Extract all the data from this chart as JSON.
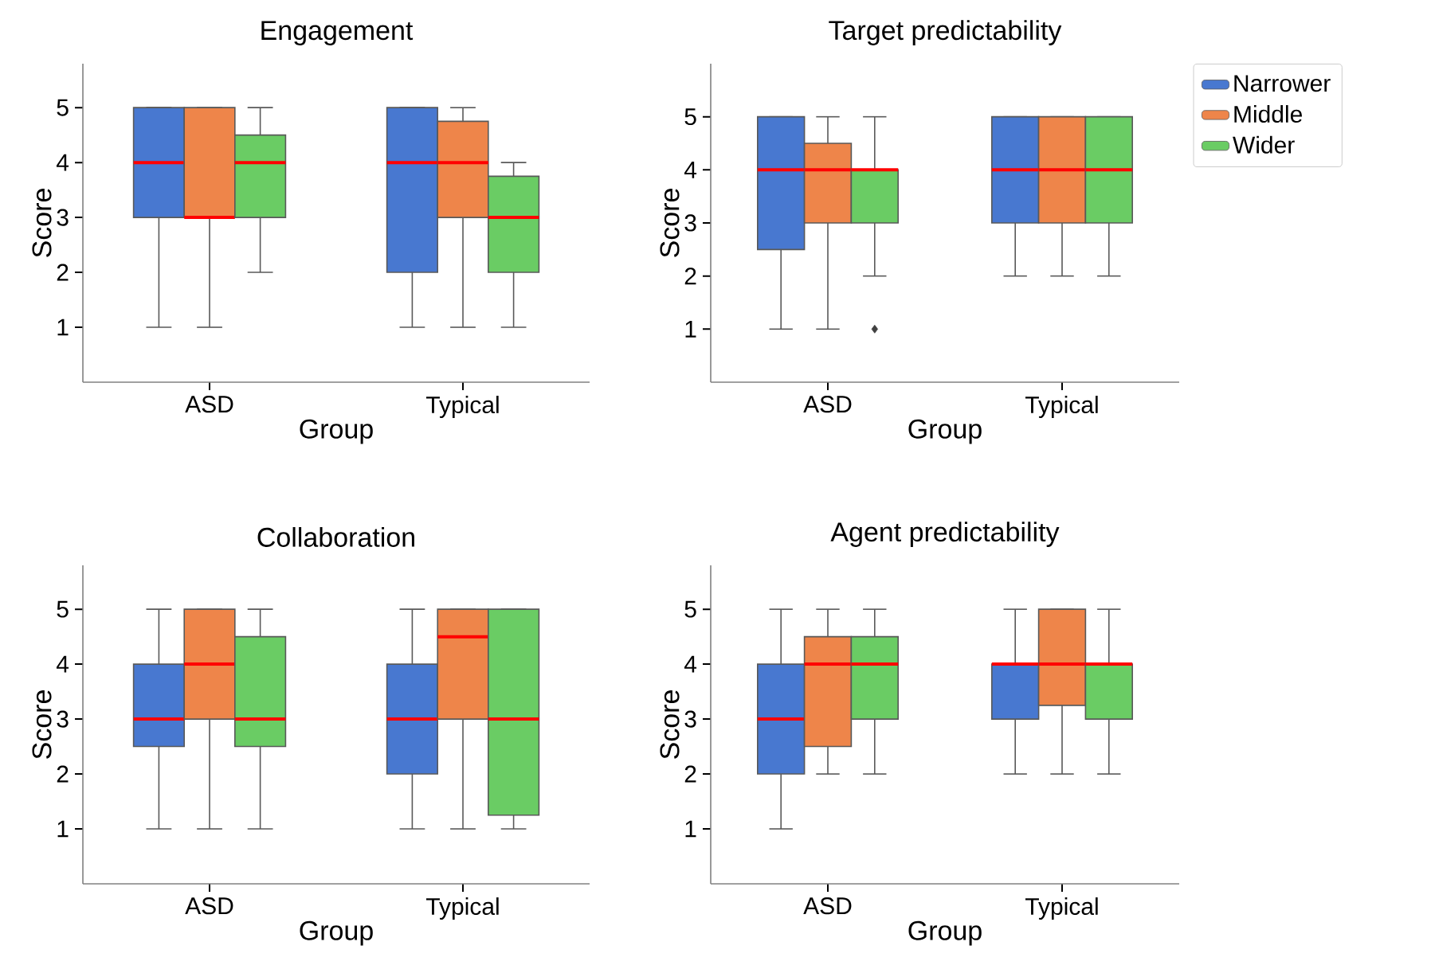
{
  "chart_data": [
    {
      "type": "box",
      "title": "Engagement",
      "xlabel": "Group",
      "ylabel": "Score",
      "categories": [
        "ASD",
        "Typical"
      ],
      "ylim": [
        0,
        5.8
      ],
      "yticks": [
        1,
        2,
        3,
        4,
        5
      ],
      "grid": false,
      "legend": false,
      "series": [
        {
          "color": "#4878d0",
          "boxes": [
            {
              "low": 1,
              "q1": 3,
              "median": 4,
              "q3": 5,
              "high": 5
            },
            {
              "low": 1,
              "q1": 2,
              "median": 4,
              "q3": 5,
              "high": 5
            }
          ]
        },
        {
          "color": "#ee854a",
          "boxes": [
            {
              "low": 1,
              "q1": 3,
              "median": 3,
              "q3": 5,
              "high": 5
            },
            {
              "low": 1,
              "q1": 3,
              "median": 4,
              "q3": 4.75,
              "high": 5
            }
          ]
        },
        {
          "color": "#6acc64",
          "boxes": [
            {
              "low": 2,
              "q1": 3,
              "median": 4,
              "q3": 4.5,
              "high": 5
            },
            {
              "low": 1,
              "q1": 2,
              "median": 3,
              "q3": 3.75,
              "high": 4
            }
          ]
        }
      ]
    },
    {
      "type": "box",
      "title": "Target predictability",
      "xlabel": "Group",
      "ylabel": "Score",
      "categories": [
        "ASD",
        "Typical"
      ],
      "ylim": [
        0,
        6
      ],
      "yticks": [
        1,
        2,
        3,
        4,
        5
      ],
      "grid": false,
      "legend": "top right",
      "series": [
        {
          "name": "Narrower",
          "color": "#4878d0",
          "boxes": [
            {
              "low": 1,
              "q1": 2.5,
              "median": 4,
              "q3": 5,
              "high": 5
            },
            {
              "low": 2,
              "q1": 3,
              "median": 4,
              "q3": 5,
              "high": 5
            }
          ]
        },
        {
          "name": "Middle",
          "color": "#ee854a",
          "boxes": [
            {
              "low": 1,
              "q1": 3,
              "median": 4,
              "q3": 4.5,
              "high": 5
            },
            {
              "low": 2,
              "q1": 3,
              "median": 4,
              "q3": 5,
              "high": 5
            }
          ]
        },
        {
          "name": "Wider",
          "color": "#6acc64",
          "boxes": [
            {
              "low": 2,
              "q1": 3,
              "median": 4,
              "q3": 4,
              "high": 5,
              "outliers": [
                1
              ]
            },
            {
              "low": 2,
              "q1": 3,
              "median": 4,
              "q3": 5,
              "high": 5
            }
          ]
        }
      ]
    },
    {
      "type": "box",
      "title": "Collaboration",
      "xlabel": "Group",
      "ylabel": "Score",
      "categories": [
        "ASD",
        "Typical"
      ],
      "ylim": [
        0,
        5.8
      ],
      "yticks": [
        1,
        2,
        3,
        4,
        5
      ],
      "grid": false,
      "legend": false,
      "series": [
        {
          "color": "#4878d0",
          "boxes": [
            {
              "low": 1,
              "q1": 2.5,
              "median": 3,
              "q3": 4,
              "high": 5
            },
            {
              "low": 1,
              "q1": 2,
              "median": 3,
              "q3": 4,
              "high": 5
            }
          ]
        },
        {
          "color": "#ee854a",
          "boxes": [
            {
              "low": 1,
              "q1": 3,
              "median": 4,
              "q3": 5,
              "high": 5
            },
            {
              "low": 1,
              "q1": 3,
              "median": 4.5,
              "q3": 5,
              "high": 5
            }
          ]
        },
        {
          "color": "#6acc64",
          "boxes": [
            {
              "low": 1,
              "q1": 2.5,
              "median": 3,
              "q3": 4.5,
              "high": 5
            },
            {
              "low": 1,
              "q1": 1.25,
              "median": 3,
              "q3": 5,
              "high": 5
            }
          ]
        }
      ]
    },
    {
      "type": "box",
      "title": "Agent predictability",
      "xlabel": "Group",
      "ylabel": "Score",
      "categories": [
        "ASD",
        "Typical"
      ],
      "ylim": [
        0,
        5.8
      ],
      "yticks": [
        1,
        2,
        3,
        4,
        5
      ],
      "grid": false,
      "legend": false,
      "series": [
        {
          "color": "#4878d0",
          "boxes": [
            {
              "low": 1,
              "q1": 2,
              "median": 3,
              "q3": 4,
              "high": 5
            },
            {
              "low": 2,
              "q1": 3,
              "median": 4,
              "q3": 4,
              "high": 5
            }
          ]
        },
        {
          "color": "#ee854a",
          "boxes": [
            {
              "low": 2,
              "q1": 2.5,
              "median": 4,
              "q3": 4.5,
              "high": 5
            },
            {
              "low": 2,
              "q1": 3.25,
              "median": 4,
              "q3": 5,
              "high": 5
            }
          ]
        },
        {
          "color": "#6acc64",
          "boxes": [
            {
              "low": 2,
              "q1": 3,
              "median": 4,
              "q3": 4.5,
              "high": 5
            },
            {
              "low": 2,
              "q1": 3,
              "median": 4,
              "q3": 4,
              "high": 5
            }
          ]
        }
      ]
    }
  ]
}
